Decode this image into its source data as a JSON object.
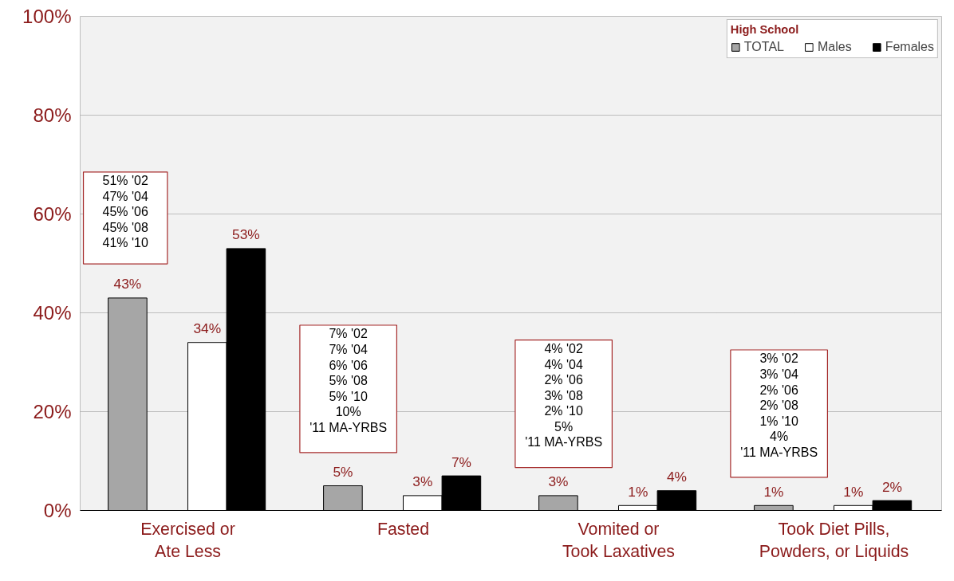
{
  "chart_data": {
    "type": "bar",
    "legend_title": "High School",
    "categories": [
      "Exercised or\nAte Less",
      "Fasted",
      "Vomited or\nTook Laxatives",
      "Took Diet Pills,\nPowders, or Liquids"
    ],
    "series": [
      {
        "name": "TOTAL",
        "color": "#a6a6a6",
        "values": [
          43,
          5,
          3,
          1
        ],
        "value_labels": [
          "43%",
          "5%",
          "3%",
          "1%"
        ]
      },
      {
        "name": "Males",
        "color": "#ffffff",
        "values": [
          34,
          3,
          1,
          1
        ],
        "value_labels": [
          "34%",
          "3%",
          "1%",
          "1%"
        ]
      },
      {
        "name": "Females",
        "color": "#000000",
        "values": [
          53,
          7,
          4,
          2
        ],
        "value_labels": [
          "53%",
          "7%",
          "4%",
          "2%"
        ]
      }
    ],
    "ylim": [
      0,
      100
    ],
    "yticks": [
      {
        "value": 0,
        "label": "0%"
      },
      {
        "value": 20,
        "label": "20%"
      },
      {
        "value": 40,
        "label": "40%"
      },
      {
        "value": 60,
        "label": "60%"
      },
      {
        "value": 80,
        "label": "80%"
      },
      {
        "value": 100,
        "label": "100%"
      }
    ],
    "grid": "y",
    "legend": "top right",
    "annotations": [
      "51% '02\n47% '04\n45% '06\n45% '08\n41% '10",
      "7% '02\n7% '04\n6% '06\n5% '08\n5% '10\n10%\n'11 MA-YRBS",
      "4% '02\n4% '04\n2% '06\n3% '08\n2% '10\n5%\n'11 MA-YRBS",
      "3% '02\n3% '04\n2% '06\n2% '08\n1% '10\n4%\n'11 MA-YRBS"
    ]
  }
}
